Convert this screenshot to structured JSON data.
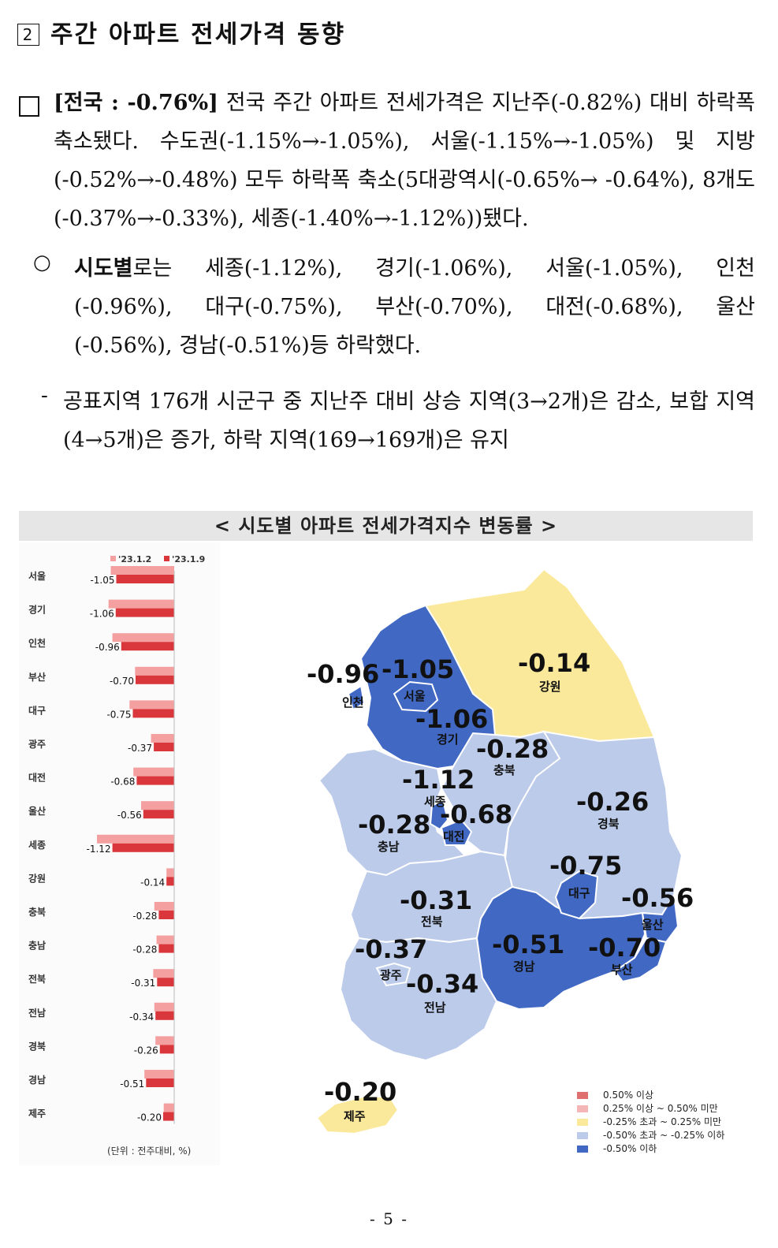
{
  "heading": {
    "marker": "2",
    "title": "주간 아파트 전세가격 동향"
  },
  "summary": {
    "lead": "[전국 : -0.76%]",
    "text": "전국 주간 아파트 전세가격은 지난주(-0.82%) 대비 하락폭 축소됐다. 수도권(-1.15%→-1.05%), 서울(-1.15%→-1.05%) 및 지방(-0.52%→-0.48%) 모두 하락폭 축소(5대광역시(-0.65%→ -0.64%), 8개도(-0.37%→-0.33%), 세종(-1.40%→-1.12%))됐다."
  },
  "regional": {
    "marker": "○",
    "lead": "시도별",
    "text": "로는 세종(-1.12%), 경기(-1.06%), 서울(-1.05%), 인천 (-0.96%), 대구(-0.75%), 부산(-0.70%), 대전(-0.68%), 울산 (-0.56%), 경남(-0.51%)등 하락했다."
  },
  "note": {
    "marker": "-",
    "text": "공표지역 176개 시군구 중 지난주 대비 상승 지역(3→2개)은 감소, 보합 지역(4→5개)은 증가, 하락 지역(169→169개)은 유지"
  },
  "figure_caption": "< 시도별 아파트 전세가격지수 변동률 >",
  "chart_data": {
    "type": "bar",
    "orientation": "horizontal",
    "categories": [
      "서울",
      "경기",
      "인천",
      "부산",
      "대구",
      "광주",
      "대전",
      "울산",
      "세종",
      "강원",
      "충북",
      "충남",
      "전북",
      "전남",
      "경북",
      "경남",
      "제주"
    ],
    "series": [
      {
        "name": "'23.1.2",
        "color": "#f4a0a0",
        "values": [
          -1.15,
          -1.19,
          -1.12,
          -0.71,
          -0.81,
          -0.42,
          -0.74,
          -0.6,
          -1.4,
          -0.14,
          -0.36,
          -0.32,
          -0.38,
          -0.36,
          -0.34,
          -0.54,
          -0.19
        ]
      },
      {
        "name": "'23.1.9",
        "color": "#d9373b",
        "values": [
          -1.05,
          -1.06,
          -0.96,
          -0.7,
          -0.75,
          -0.37,
          -0.68,
          -0.56,
          -1.12,
          -0.14,
          -0.28,
          -0.28,
          -0.31,
          -0.34,
          -0.26,
          -0.51,
          -0.2
        ]
      }
    ],
    "data_labels": [
      "-1.05",
      "-1.06",
      "-0.96",
      "-0.70",
      "-0.75",
      "-0.37",
      "-0.68",
      "-0.56",
      "-1.12",
      "-0.14",
      "-0.28",
      "-0.28",
      "-0.31",
      "-0.34",
      "-0.26",
      "-0.51",
      "-0.20"
    ],
    "unit_note": "(단위 : 전주대비, %)"
  },
  "map": {
    "regions": [
      {
        "name": "서울",
        "value": "-1.05"
      },
      {
        "name": "인천",
        "value": "-0.96"
      },
      {
        "name": "경기",
        "value": "-1.06"
      },
      {
        "name": "강원",
        "value": "-0.14"
      },
      {
        "name": "충북",
        "value": "-0.28"
      },
      {
        "name": "세종",
        "value": "-1.12"
      },
      {
        "name": "대전",
        "value": "-0.68"
      },
      {
        "name": "충남",
        "value": "-0.28"
      },
      {
        "name": "경북",
        "value": "-0.26"
      },
      {
        "name": "대구",
        "value": "-0.75"
      },
      {
        "name": "울산",
        "value": "-0.56"
      },
      {
        "name": "전북",
        "value": "-0.31"
      },
      {
        "name": "경남",
        "value": "-0.51"
      },
      {
        "name": "부산",
        "value": "-0.70"
      },
      {
        "name": "광주",
        "value": "-0.37"
      },
      {
        "name": "전남",
        "value": "-0.34"
      },
      {
        "name": "제주",
        "value": "-0.20"
      }
    ],
    "colors": {
      "dark_blue": "#4169c4",
      "light_blue": "#bccbea",
      "yellow": "#fbe99b"
    },
    "legend": [
      {
        "label": "0.50% 이상",
        "color": "#e07070"
      },
      {
        "label": "0.25% 이상 ~ 0.50% 미만",
        "color": "#f4b6b6"
      },
      {
        "label": "-0.25% 초과 ~ 0.25% 미만",
        "color": "#fbe99b"
      },
      {
        "label": "-0.50% 초과 ~ -0.25% 이하",
        "color": "#bccbea"
      },
      {
        "label": "-0.50% 이하",
        "color": "#4169c4"
      }
    ]
  },
  "page_number": "- 5 -"
}
